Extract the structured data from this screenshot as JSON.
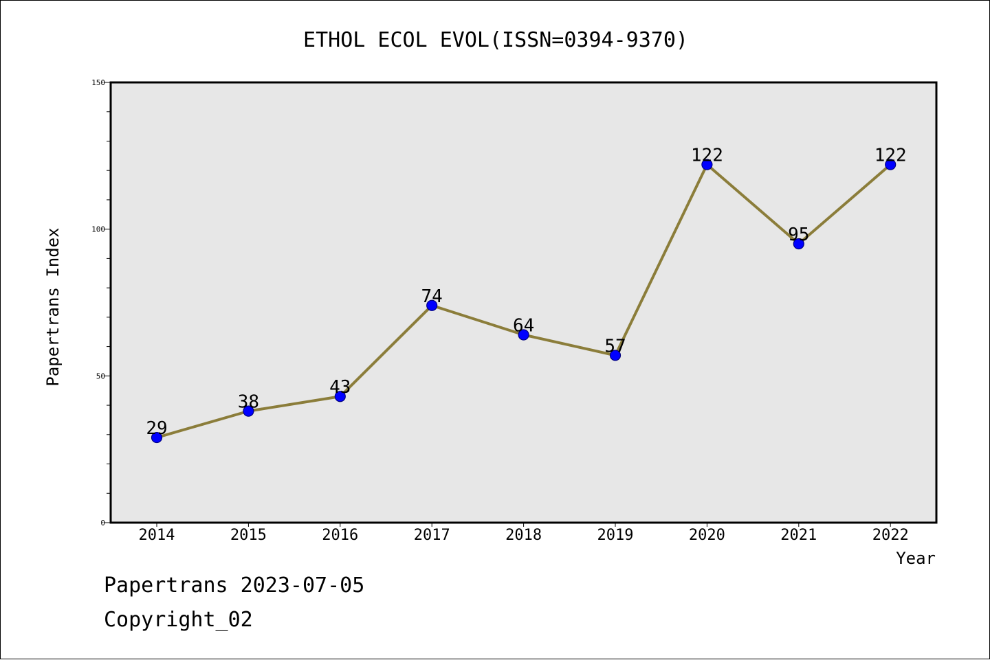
{
  "chart_data": {
    "type": "line",
    "title": "ETHOL ECOL EVOL(ISSN=0394-9370)",
    "xlabel": "Year",
    "ylabel": "Papertrans Index",
    "categories": [
      "2014",
      "2015",
      "2016",
      "2017",
      "2018",
      "2019",
      "2020",
      "2021",
      "2022"
    ],
    "series": [
      {
        "values": [
          29,
          38,
          43,
          74,
          64,
          57,
          122,
          95,
          122
        ]
      }
    ],
    "ylim": [
      0,
      150
    ],
    "yticks": [
      0,
      50,
      100,
      150
    ],
    "grid": false,
    "data_labels": true,
    "colors": {
      "plot_background": "#e7e7e7",
      "line": "#8b7d3a",
      "marker": "#0000ff",
      "marker_edge": "#000080",
      "axis": "#000000"
    }
  },
  "footer": {
    "date_text": "Papertrans 2023-07-05",
    "copyright_text": "Copyright_02"
  }
}
